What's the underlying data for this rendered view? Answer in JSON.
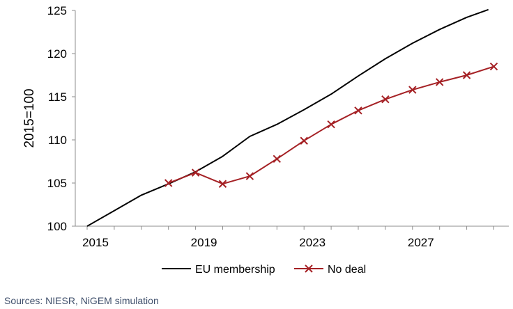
{
  "chart_data": {
    "type": "line",
    "ylabel": "2015=100",
    "ylim": [
      100,
      125
    ],
    "xlim": [
      2015,
      2030
    ],
    "y_ticks": [
      100,
      105,
      110,
      115,
      120,
      125
    ],
    "x_ticks": [
      2015,
      2019,
      2023,
      2027
    ],
    "grid": false,
    "legend_position": "bottom",
    "series": [
      {
        "name": "EU membership",
        "color": "#000000",
        "marker": "none",
        "x": [
          2015,
          2016,
          2017,
          2018,
          2019,
          2020,
          2021,
          2022,
          2023,
          2024,
          2025,
          2026,
          2027,
          2028,
          2029,
          2029.8
        ],
        "y": [
          100.0,
          101.8,
          103.6,
          104.9,
          106.3,
          108.1,
          110.4,
          111.8,
          113.5,
          115.3,
          117.4,
          119.4,
          121.2,
          122.8,
          124.2,
          125.1
        ]
      },
      {
        "name": "No deal",
        "color": "#a52125",
        "marker": "x",
        "x": [
          2018,
          2019,
          2020,
          2021,
          2022,
          2023,
          2024,
          2025,
          2026,
          2027,
          2028,
          2029,
          2030
        ],
        "y": [
          105.0,
          106.2,
          104.9,
          105.8,
          107.8,
          109.9,
          111.8,
          113.4,
          114.7,
          115.8,
          116.7,
          117.5,
          118.5
        ]
      }
    ]
  },
  "source_text": "Sources: NIESR, NiGEM simulation"
}
